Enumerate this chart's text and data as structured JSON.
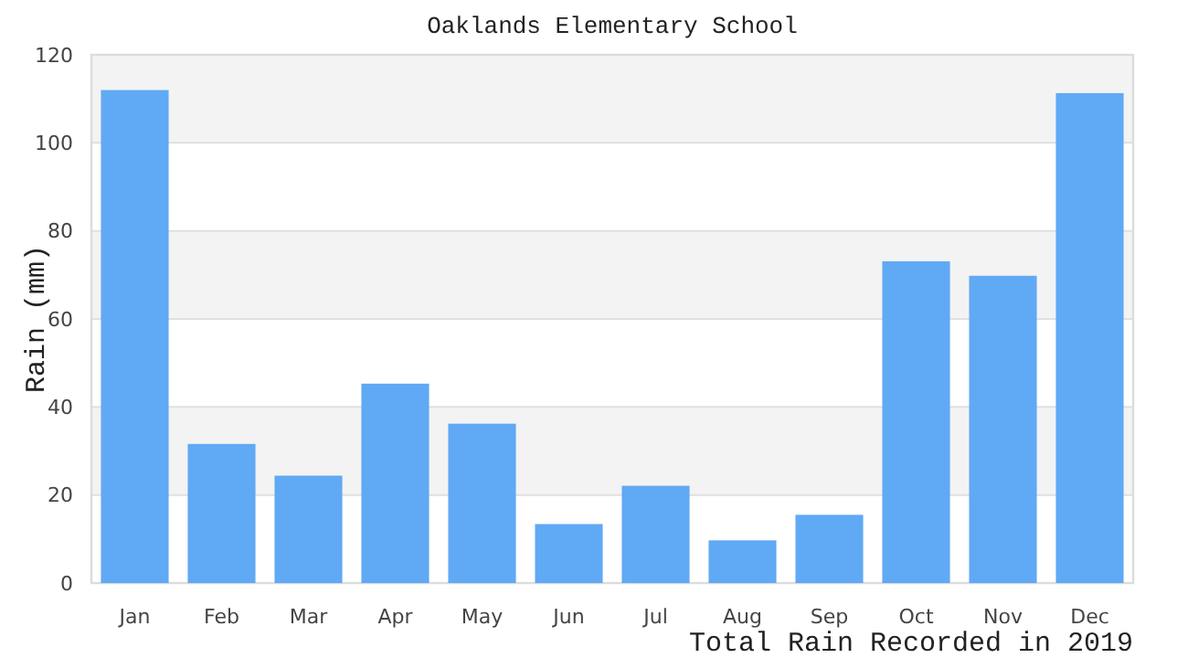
{
  "chart_data": {
    "type": "bar",
    "title": "Oaklands Elementary School",
    "xlabel": "Total Rain Recorded in 2019",
    "ylabel": "Rain (mm)",
    "categories": [
      "Jan",
      "Feb",
      "Mar",
      "Apr",
      "May",
      "Jun",
      "Jul",
      "Aug",
      "Sep",
      "Oct",
      "Nov",
      "Dec"
    ],
    "values": [
      112,
      31.6,
      24.4,
      45.3,
      36.2,
      13.4,
      22.1,
      9.7,
      15.5,
      73.1,
      69.8,
      111.3
    ],
    "color": "#60a9f4",
    "ylim": [
      0,
      120
    ],
    "yticks": [
      0,
      20,
      40,
      60,
      80,
      100,
      120
    ],
    "grid": true
  }
}
